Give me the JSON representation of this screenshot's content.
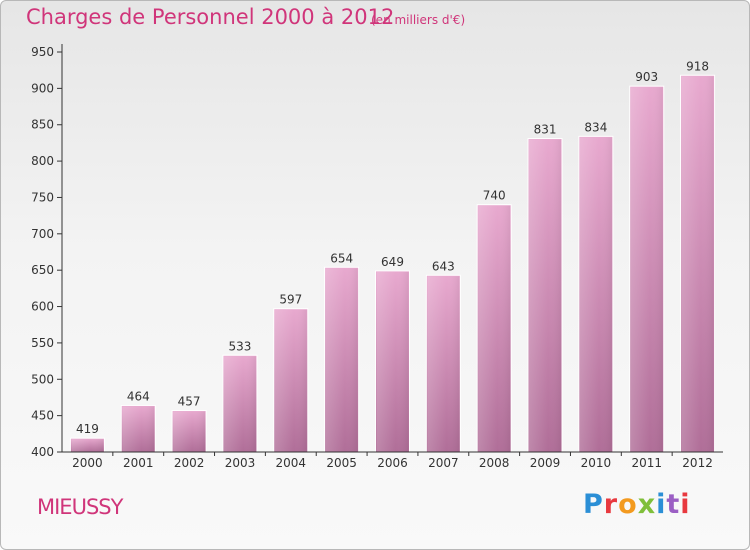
{
  "title": "Charges de Personnel 2000 à 2012",
  "unit": "(en milliers d'€)",
  "commune": "MIEUSSY",
  "logo": {
    "text": "Proxiti",
    "letters": [
      "P",
      "r",
      "o",
      "x",
      "i",
      "t",
      "i"
    ]
  },
  "colors": {
    "accent": "#d0357a",
    "bar_top": "#e8a9cf",
    "bar_bottom": "#b06e98",
    "axis": "#333333",
    "grid": "#555555"
  },
  "chart_data": {
    "type": "bar",
    "title": "Charges de Personnel 2000 à 2012",
    "xlabel": "",
    "ylabel": "",
    "categories": [
      "2000",
      "2001",
      "2002",
      "2003",
      "2004",
      "2005",
      "2006",
      "2007",
      "2008",
      "2009",
      "2010",
      "2011",
      "2012"
    ],
    "values": [
      419,
      464,
      457,
      533,
      597,
      654,
      649,
      643,
      740,
      831,
      834,
      903,
      918
    ],
    "ylim": [
      400,
      950
    ],
    "yticks": [
      400,
      450,
      500,
      550,
      600,
      650,
      700,
      750,
      800,
      850,
      900,
      950
    ],
    "grid": false,
    "data_labels": true
  }
}
